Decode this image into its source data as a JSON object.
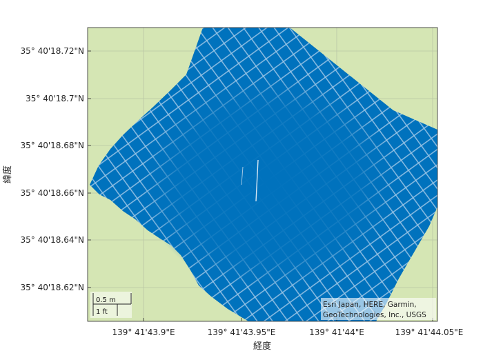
{
  "map": {
    "type": "geographic-density-plot",
    "axes": {
      "xlabel": "経度",
      "ylabel": "緯度",
      "x_ticks": [
        {
          "label": "139°  41'43.9\"E"
        },
        {
          "label": "139°  41'43.95\"E"
        },
        {
          "label": "139°  41'44\"E"
        },
        {
          "label": "139°  41'44.05\"E"
        }
      ],
      "y_ticks": [
        {
          "label": "35°  40'18.72\"N"
        },
        {
          "label": "35°  40'18.7\"N"
        },
        {
          "label": "35°  40'18.68\"N"
        },
        {
          "label": "35°  40'18.66\"N"
        },
        {
          "label": "35°  40'18.64\"N"
        },
        {
          "label": "35°  40'18.62\"N"
        }
      ],
      "grid": true
    },
    "basemap_color": "#d5e6b4",
    "data_color": "#0072bd",
    "scale_bar": {
      "metric_label": "0.5 m",
      "imperial_label": "1 ft"
    },
    "attribution": {
      "line1": "Esri Japan, HERE, Garmin,",
      "line2": "GeoTechnologies, Inc., USGS"
    }
  }
}
